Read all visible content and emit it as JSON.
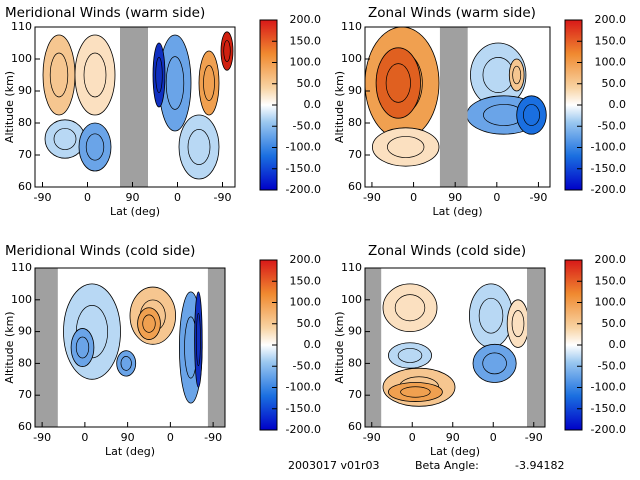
{
  "chart_data": [
    {
      "type": "contour",
      "title": "Meridional Winds (warm side)",
      "xlabel": "Lat (deg)",
      "ylabel": "Altitude (km)",
      "xlim": [
        -15,
        385
      ],
      "xticks": [
        {
          "value": 0,
          "label": "-90"
        },
        {
          "value": 90,
          "label": "0"
        },
        {
          "value": 180,
          "label": "90"
        },
        {
          "value": 270,
          "label": "0"
        },
        {
          "value": 360,
          "label": "-90"
        }
      ],
      "ylim": [
        60,
        110
      ],
      "yticks": [
        60,
        70,
        80,
        90,
        100,
        110
      ],
      "clim": [
        -200,
        200
      ],
      "cticks": [
        {
          "value": 200,
          "label": "200.0"
        },
        {
          "value": 150,
          "label": "150.0"
        },
        {
          "value": 100,
          "label": "100.0"
        },
        {
          "value": 50,
          "label": "50.0"
        },
        {
          "value": 0,
          "label": "0.0"
        },
        {
          "value": -50,
          "label": "-50.0"
        },
        {
          "value": -100,
          "label": "-100.0"
        },
        {
          "value": -150,
          "label": "-150.0"
        },
        {
          "value": -200,
          "label": "-200.0"
        }
      ]
    },
    {
      "type": "contour",
      "title": "Zonal Winds (warm side)",
      "xlabel": "Lat (deg)",
      "ylabel": "Altitude (km)",
      "xlim": [
        -15,
        385
      ],
      "xticks": [
        {
          "value": 0,
          "label": "-90"
        },
        {
          "value": 90,
          "label": "0"
        },
        {
          "value": 180,
          "label": "90"
        },
        {
          "value": 270,
          "label": "0"
        },
        {
          "value": 360,
          "label": "-90"
        }
      ],
      "ylim": [
        60,
        110
      ],
      "yticks": [
        60,
        70,
        80,
        90,
        100,
        110
      ],
      "clim": [
        -200,
        200
      ],
      "cticks": [
        {
          "value": 200,
          "label": "200.0"
        },
        {
          "value": 150,
          "label": "150.0"
        },
        {
          "value": 100,
          "label": "100.0"
        },
        {
          "value": 50,
          "label": "50.0"
        },
        {
          "value": 0,
          "label": "0.0"
        },
        {
          "value": -50,
          "label": "-50.0"
        },
        {
          "value": -100,
          "label": "-100.0"
        },
        {
          "value": -150,
          "label": "-150.0"
        },
        {
          "value": -200,
          "label": "-200.0"
        }
      ]
    },
    {
      "type": "contour",
      "title": "Meridional Winds (cold side)",
      "xlabel": "Lat (deg)",
      "ylabel": "Altitude (km)",
      "xlim": [
        -15,
        385
      ],
      "xticks": [
        {
          "value": 0,
          "label": "-90"
        },
        {
          "value": 90,
          "label": "0"
        },
        {
          "value": 180,
          "label": "90"
        },
        {
          "value": 270,
          "label": "0"
        },
        {
          "value": 360,
          "label": "-90"
        }
      ],
      "ylim": [
        60,
        110
      ],
      "yticks": [
        60,
        70,
        80,
        90,
        100,
        110
      ],
      "clim": [
        -200,
        200
      ],
      "cticks": [
        {
          "value": 200,
          "label": "200.0"
        },
        {
          "value": 150,
          "label": "150.0"
        },
        {
          "value": 100,
          "label": "100.0"
        },
        {
          "value": 50,
          "label": "50.0"
        },
        {
          "value": 0,
          "label": "0.0"
        },
        {
          "value": -50,
          "label": "-50.0"
        },
        {
          "value": -100,
          "label": "-100.0"
        },
        {
          "value": -150,
          "label": "-150.0"
        },
        {
          "value": -200,
          "label": "-200.0"
        }
      ]
    },
    {
      "type": "contour",
      "title": "Zonal Winds (cold side)",
      "xlabel": "Lat (deg)",
      "ylabel": "Altitude (km)",
      "xlim": [
        -15,
        385
      ],
      "xticks": [
        {
          "value": 0,
          "label": "-90"
        },
        {
          "value": 90,
          "label": "0"
        },
        {
          "value": 180,
          "label": "90"
        },
        {
          "value": 270,
          "label": "0"
        },
        {
          "value": 360,
          "label": "-90"
        }
      ],
      "ylim": [
        60,
        110
      ],
      "yticks": [
        60,
        70,
        80,
        90,
        100,
        110
      ],
      "clim": [
        -200,
        200
      ],
      "cticks": [
        {
          "value": 200,
          "label": "200.0"
        },
        {
          "value": 150,
          "label": "150.0"
        },
        {
          "value": 100,
          "label": "100.0"
        },
        {
          "value": 50,
          "label": "50.0"
        },
        {
          "value": 0,
          "label": "0.0"
        },
        {
          "value": -50,
          "label": "-50.0"
        },
        {
          "value": -100,
          "label": "-100.0"
        },
        {
          "value": -150,
          "label": "-150.0"
        },
        {
          "value": -200,
          "label": "-200.0"
        }
      ]
    }
  ],
  "footer": {
    "id": "2003017 v01r03",
    "beta_label": "Beta Angle:",
    "beta_value": "-3.94182"
  }
}
